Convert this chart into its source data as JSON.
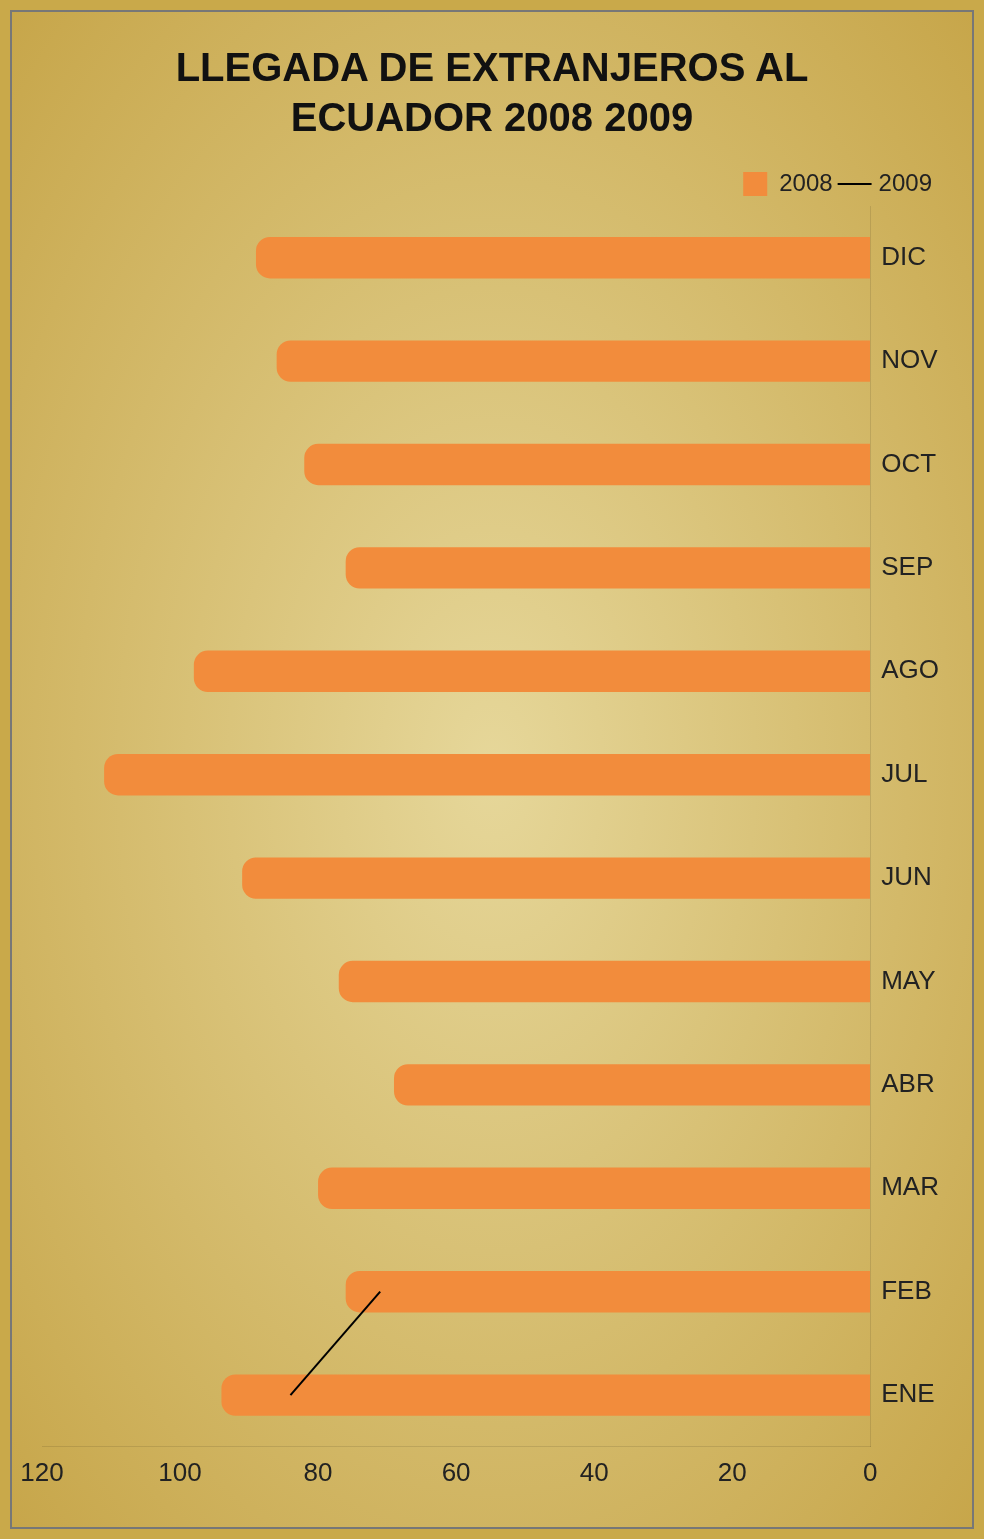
{
  "chart_data": {
    "type": "bar",
    "orientation": "horizontal",
    "title": "LLEGADA DE EXTRANJEROS AL ECUADOR 2008 2009",
    "categories": [
      "DIC",
      "NOV",
      "OCT",
      "SEP",
      "AGO",
      "JUL",
      "JUN",
      "MAY",
      "ABR",
      "MAR",
      "FEB",
      "ENE"
    ],
    "xlim": [
      120,
      0
    ],
    "xticks": [
      0,
      20,
      40,
      60,
      80,
      100,
      120
    ],
    "legend": "top right",
    "series": [
      {
        "name": "2008",
        "color": "#f28c3c",
        "values": [
          89,
          86,
          82,
          76,
          98,
          111,
          91,
          77,
          69,
          80,
          76,
          94
        ]
      },
      {
        "name": "2009",
        "type": "line",
        "color": "#000000",
        "values": [
          null,
          null,
          null,
          null,
          null,
          null,
          null,
          null,
          null,
          null,
          71,
          84
        ]
      }
    ]
  }
}
